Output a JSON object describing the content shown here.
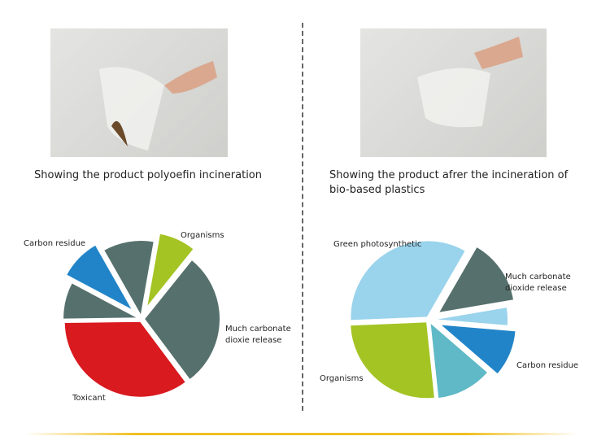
{
  "left": {
    "caption": "Showing the product polyoefin incineration"
  },
  "right": {
    "caption": "Showing the product afrer the incineration of bio-based plastics"
  },
  "chart_data": [
    {
      "type": "pie",
      "slices": [
        {
          "label": "Organisms",
          "value": 8,
          "color": "#a4c424",
          "exploded": true
        },
        {
          "label": "Much carbonate dioxie release",
          "value": 29,
          "color": "#56716d"
        },
        {
          "label": "Toxicant",
          "value": 35,
          "color": "#d91a1f"
        },
        {
          "label": "",
          "value": 8,
          "color": "#56716d"
        },
        {
          "label": "Carbon residue",
          "value": 9,
          "color": "#2284c8",
          "exploded": true
        },
        {
          "label": "",
          "value": 11,
          "color": "#56716d"
        }
      ]
    },
    {
      "type": "pie",
      "slices": [
        {
          "label": "Much carbonate dioxide release",
          "value": 14,
          "color": "#56716d",
          "exploded": true
        },
        {
          "label": "",
          "value": 4,
          "color": "#9ad3ec"
        },
        {
          "label": "Carbon residue",
          "value": 10,
          "color": "#2284c8",
          "exploded": true
        },
        {
          "label": "",
          "value": 12,
          "color": "#5fb9c6"
        },
        {
          "label": "Organisms",
          "value": 26,
          "color": "#a4c424"
        },
        {
          "label": "Green photosynthetic",
          "value": 34,
          "color": "#9ad3ec"
        }
      ]
    }
  ]
}
